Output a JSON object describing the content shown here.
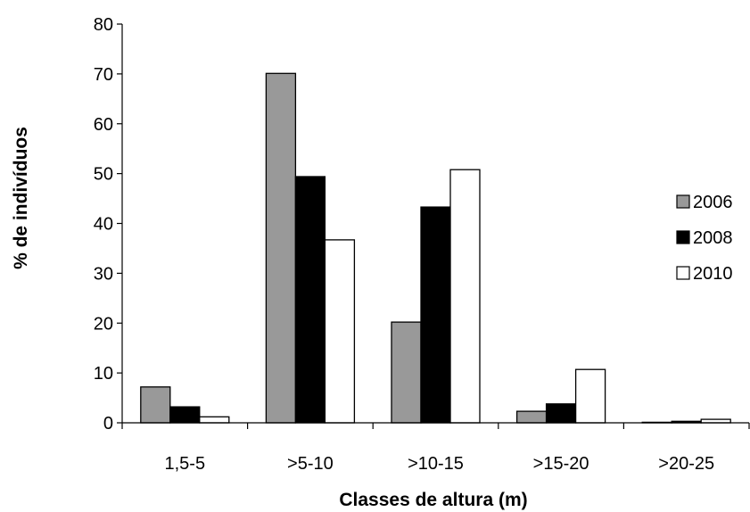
{
  "chart_data": {
    "type": "bar",
    "title": "",
    "xlabel": "Classes de altura (m)",
    "ylabel": "%  de indivíduos",
    "categories": [
      "1,5-5",
      ">5-10",
      ">10-15",
      ">15-20",
      ">20-25"
    ],
    "series": [
      {
        "name": "2006",
        "color": "#999999",
        "values": [
          7.2,
          70.1,
          20.2,
          2.3,
          0.1
        ]
      },
      {
        "name": "2008",
        "color": "#000000",
        "values": [
          3.2,
          49.4,
          43.3,
          3.8,
          0.3
        ]
      },
      {
        "name": "2010",
        "color": "#ffffff",
        "values": [
          1.2,
          36.7,
          50.8,
          10.7,
          0.7
        ]
      }
    ],
    "ylim": [
      0,
      80
    ],
    "yticks": [
      "0",
      "10",
      "20",
      "30",
      "40",
      "50",
      "60",
      "70",
      "80"
    ],
    "grid": false,
    "legend_position": "right"
  }
}
